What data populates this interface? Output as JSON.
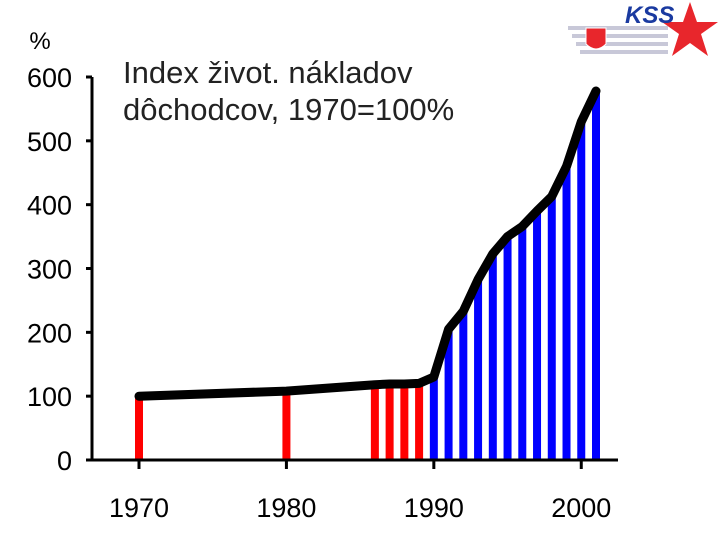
{
  "chart_data": {
    "type": "bar",
    "title_lines": [
      "Index život. nákladov",
      "dôchodcov, 1970=100%"
    ],
    "ylabel": "%",
    "xlim": [
      1970,
      2001
    ],
    "ylim": [
      0,
      600
    ],
    "xticks": [
      1970,
      1980,
      1990,
      2000
    ],
    "yticks": [
      0,
      100,
      200,
      300,
      400,
      500,
      600
    ],
    "grid": false,
    "series": [
      {
        "x": [
          1970,
          1980,
          1986,
          1987,
          1988,
          1989,
          1990,
          1991,
          1992,
          1993,
          1994,
          1995,
          1996,
          1997,
          1998,
          1999,
          2000,
          2001
        ],
        "values": [
          100,
          108,
          118,
          119,
          119,
          120,
          130,
          205,
          233,
          283,
          323,
          350,
          366,
          390,
          413,
          460,
          530,
          578
        ]
      }
    ],
    "colors": {
      "early_bars": "#ff0000",
      "late_bars": "#0000ff",
      "line": "#000000"
    }
  },
  "logo": {
    "text": "KSS"
  }
}
